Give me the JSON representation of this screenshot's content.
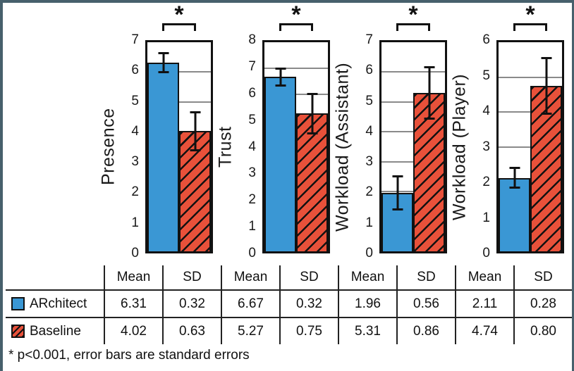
{
  "figure": {
    "footnote": "* p<0.001, error bars are standard errors",
    "border_color": "#47606c"
  },
  "colors": {
    "architect_blue": "#3a97d4",
    "baseline_red": "#e8513a",
    "frame_black": "#111111",
    "gridline_gray": "#8a8a8a",
    "table_line": "#222222"
  },
  "legend": [
    {
      "label": "ARchitect",
      "color": "#3a97d4",
      "hatch": false
    },
    {
      "label": "Baseline",
      "color": "#e8513a",
      "hatch": true
    }
  ],
  "chart_data": [
    {
      "type": "bar",
      "ylabel": "Presence",
      "ylim": [
        0,
        7
      ],
      "yticks": [
        0,
        1,
        2,
        3,
        4,
        5,
        6,
        7
      ],
      "grid": true,
      "significance": "*",
      "series": [
        {
          "name": "ARchitect",
          "mean": 6.31,
          "error": 0.32
        },
        {
          "name": "Baseline",
          "mean": 4.02,
          "error": 0.63
        }
      ]
    },
    {
      "type": "bar",
      "ylabel": "Trust",
      "ylim": [
        0,
        8
      ],
      "yticks": [
        0,
        1,
        2,
        3,
        4,
        5,
        6,
        7,
        8
      ],
      "grid": true,
      "significance": "*",
      "series": [
        {
          "name": "ARchitect",
          "mean": 6.67,
          "error": 0.32
        },
        {
          "name": "Baseline",
          "mean": 5.27,
          "error": 0.75
        }
      ]
    },
    {
      "type": "bar",
      "ylabel": "Workload (Assistant)",
      "ylim": [
        0,
        7
      ],
      "yticks": [
        0,
        1,
        2,
        3,
        4,
        5,
        6,
        7
      ],
      "grid": true,
      "significance": "*",
      "series": [
        {
          "name": "ARchitect",
          "mean": 1.96,
          "error": 0.56
        },
        {
          "name": "Baseline",
          "mean": 5.31,
          "error": 0.86
        }
      ]
    },
    {
      "type": "bar",
      "ylabel": "Workload (Player)",
      "ylim": [
        0,
        6
      ],
      "yticks": [
        0,
        1,
        2,
        3,
        4,
        5,
        6
      ],
      "grid": true,
      "significance": "*",
      "series": [
        {
          "name": "ARchitect",
          "mean": 2.11,
          "error": 0.28
        },
        {
          "name": "Baseline",
          "mean": 4.74,
          "error": 0.8
        }
      ]
    }
  ],
  "table": {
    "header": [
      "Mean",
      "SD",
      "Mean",
      "SD",
      "Mean",
      "SD",
      "Mean",
      "SD"
    ],
    "rows": [
      {
        "label": "ARchitect",
        "values": [
          "6.31",
          "0.32",
          "6.67",
          "0.32",
          "1.96",
          "0.56",
          "2.11",
          "0.28"
        ]
      },
      {
        "label": "Baseline",
        "values": [
          "4.02",
          "0.63",
          "5.27",
          "0.75",
          "5.31",
          "0.86",
          "4.74",
          "0.80"
        ]
      }
    ]
  }
}
